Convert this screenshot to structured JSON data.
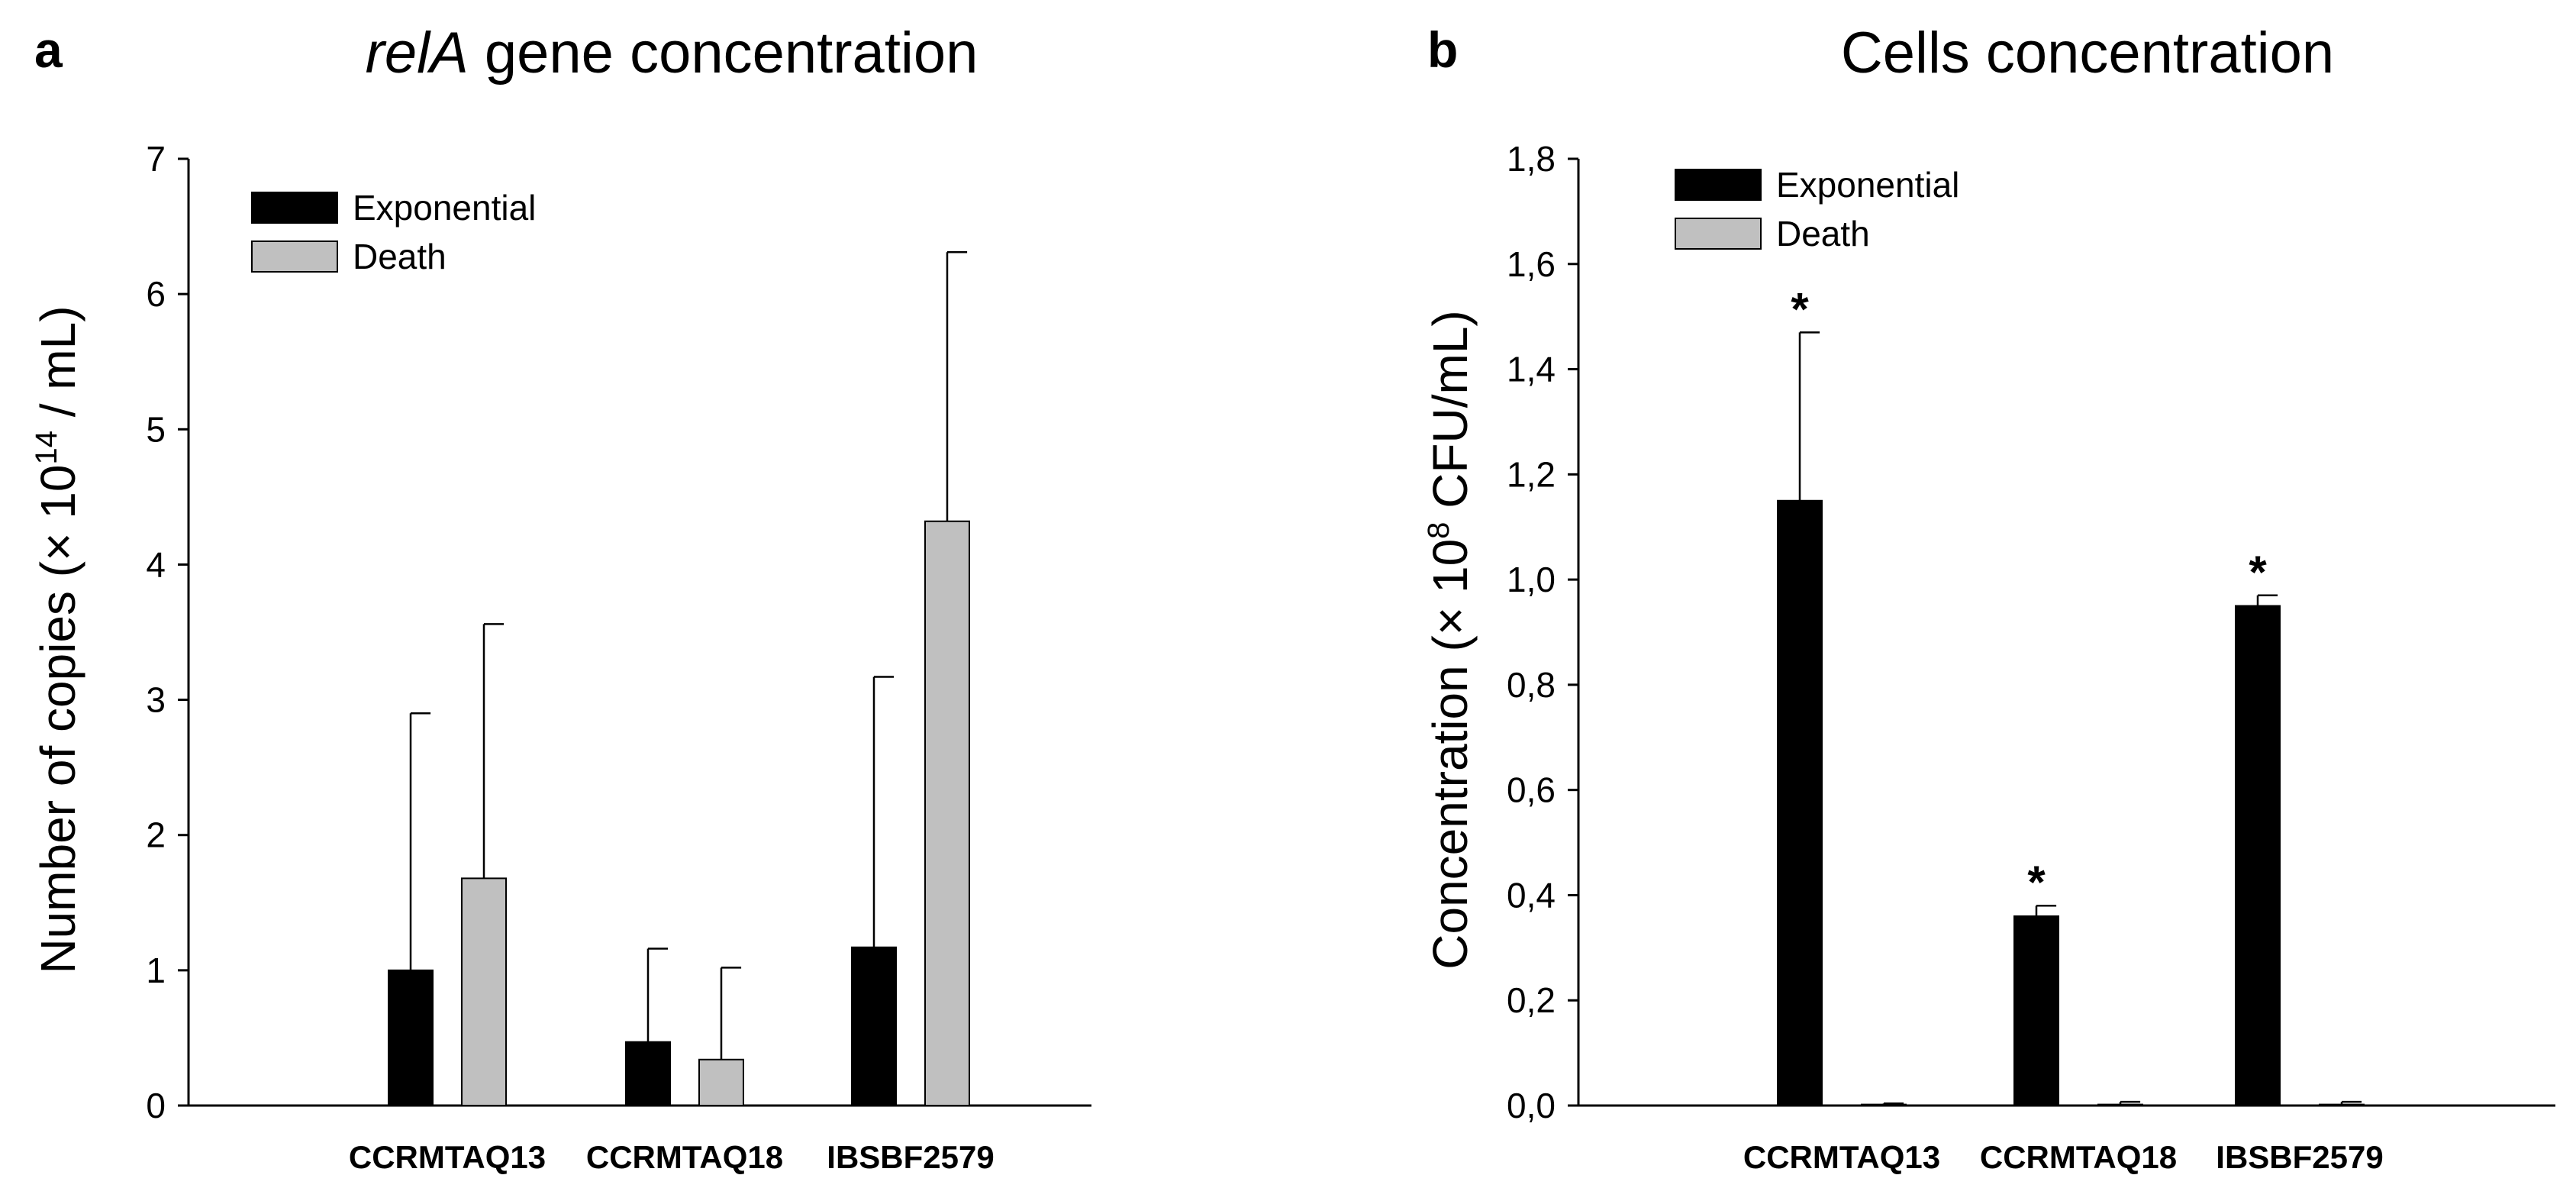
{
  "chart_data": [
    {
      "type": "bar",
      "panel_label": "a",
      "title_italic": "relA",
      "title_rest": " gene concentration",
      "ylabel_pre": "Number of copies (× 10",
      "ylabel_sup": "14",
      "ylabel_post": " / mL)",
      "categories": [
        "CCRMTAQ13",
        "CCRMTAQ18",
        "IBSBF2579"
      ],
      "series": [
        {
          "name": "Exponential",
          "color": "#000000",
          "values": [
            1.0,
            0.47,
            1.17
          ],
          "errors": [
            1.9,
            0.69,
            2.0
          ]
        },
        {
          "name": "Death",
          "color": "#c0c0c0",
          "values": [
            1.68,
            0.34,
            4.32
          ],
          "errors": [
            1.88,
            0.68,
            1.99
          ]
        }
      ],
      "ylim": [
        0,
        7
      ],
      "yticks": [
        0,
        1,
        2,
        3,
        4,
        5,
        6,
        7
      ],
      "ytick_labels": [
        "0",
        "1",
        "2",
        "3",
        "4",
        "5",
        "6",
        "7"
      ],
      "legend_position": "top-left",
      "significance": [],
      "grid": false
    },
    {
      "type": "bar",
      "panel_label": "b",
      "title_italic": "",
      "title_rest": "Cells concentration",
      "ylabel_pre": "Concentration (× 10",
      "ylabel_sup": "8",
      "ylabel_post": " CFU/mL)",
      "categories": [
        "CCRMTAQ13",
        "CCRMTAQ18",
        "IBSBF2579"
      ],
      "series": [
        {
          "name": "Exponential",
          "color": "#000000",
          "values": [
            1.15,
            0.36,
            0.95
          ],
          "errors": [
            0.32,
            0.02,
            0.02
          ]
        },
        {
          "name": "Death",
          "color": "#c0c0c0",
          "values": [
            0.002,
            0.002,
            0.002
          ],
          "errors": [
            0.002,
            0.005,
            0.005
          ]
        }
      ],
      "ylim": [
        0,
        1.8
      ],
      "yticks": [
        0,
        0.2,
        0.4,
        0.6,
        0.8,
        1.0,
        1.2,
        1.4,
        1.6,
        1.8
      ],
      "ytick_labels": [
        "0,0",
        "0,2",
        "0,4",
        "0,6",
        "0,8",
        "1,0",
        "1,2",
        "1,4",
        "1,6",
        "1,8"
      ],
      "legend_position": "top-left",
      "significance": [
        "*",
        "*",
        "*"
      ],
      "grid": false
    }
  ]
}
